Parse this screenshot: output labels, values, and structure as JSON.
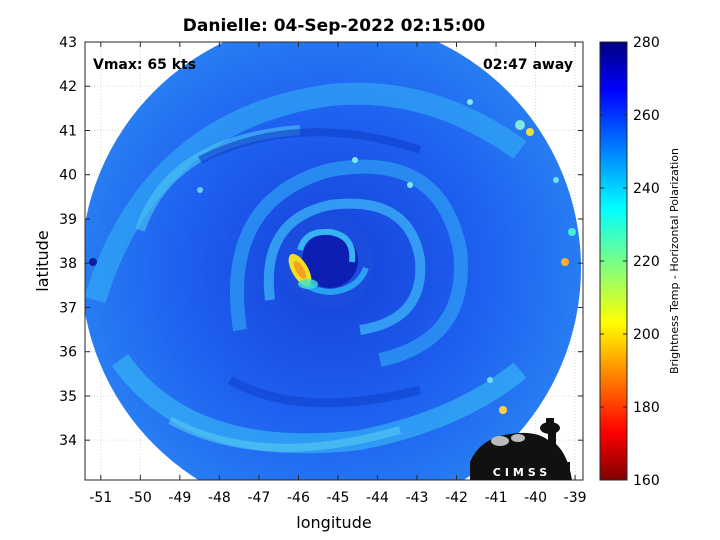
{
  "title": "Danielle: 04-Sep-2022 02:15:00",
  "annotations": {
    "vmax": "Vmax: 65 kts",
    "time_away": "02:47 away"
  },
  "axes": {
    "xlabel": "longitude",
    "ylabel": "latitude",
    "xlim": [
      -51.4,
      -38.8
    ],
    "ylim": [
      33.1,
      43
    ],
    "xticks": [
      -51,
      -50,
      -49,
      -48,
      -47,
      -46,
      -45,
      -44,
      -43,
      -42,
      -41,
      -40,
      -39
    ],
    "yticks": [
      34,
      35,
      36,
      37,
      38,
      39,
      40,
      41,
      42,
      43
    ],
    "grid": true
  },
  "colorbar": {
    "label": "Brightness Temp - Horizontal Polarization",
    "ticks": [
      160,
      180,
      200,
      220,
      240,
      260,
      280
    ],
    "range": [
      160,
      280
    ],
    "colormap": "jet"
  },
  "storm": {
    "center_lon": -45.4,
    "center_lat": 37.9,
    "warm_core_lon": -45.9,
    "warm_core_lat": 37.6
  },
  "logo": {
    "text": "CIMSS"
  },
  "colors": {
    "background_swath": "#1e5cf0",
    "band_light": "#2fb0f5",
    "eye_dark": "#0a16a8",
    "warm_spot": "#f2e020"
  }
}
